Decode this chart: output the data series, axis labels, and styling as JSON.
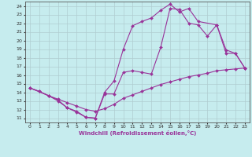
{
  "xlabel": "Windchill (Refroidissement éolien,°C)",
  "bg_color": "#c6ecee",
  "grid_color": "#b0cdd0",
  "line_color": "#993399",
  "xlim": [
    -0.5,
    23.5
  ],
  "ylim": [
    10.5,
    24.5
  ],
  "xticks": [
    0,
    1,
    2,
    3,
    4,
    5,
    6,
    7,
    8,
    9,
    10,
    11,
    12,
    13,
    14,
    15,
    16,
    17,
    18,
    19,
    20,
    21,
    22,
    23
  ],
  "yticks": [
    11,
    12,
    13,
    14,
    15,
    16,
    17,
    18,
    19,
    20,
    21,
    22,
    23,
    24
  ],
  "line1_x": [
    0,
    1,
    2,
    3,
    4,
    5,
    6,
    7,
    8,
    9,
    10,
    11,
    12,
    13,
    14,
    15,
    16,
    17,
    18,
    19,
    20,
    21,
    22,
    23
  ],
  "line1_y": [
    14.5,
    14.1,
    13.6,
    13.1,
    12.2,
    11.7,
    11.1,
    11.0,
    13.8,
    13.8,
    16.3,
    16.5,
    16.3,
    16.1,
    19.2,
    23.7,
    23.6,
    22.0,
    21.8,
    20.5,
    21.8,
    18.5,
    18.5,
    16.8
  ],
  "line2_x": [
    0,
    2,
    3,
    4,
    5,
    6,
    7,
    8,
    9,
    10,
    11,
    12,
    13,
    14,
    15,
    16,
    17,
    18,
    20,
    21,
    22,
    23
  ],
  "line2_y": [
    14.5,
    13.6,
    13.0,
    12.2,
    11.8,
    11.1,
    11.0,
    14.0,
    15.3,
    19.0,
    21.7,
    22.2,
    22.6,
    23.5,
    24.2,
    23.3,
    23.7,
    22.2,
    21.8,
    18.9,
    18.5,
    16.8
  ],
  "line3_x": [
    0,
    1,
    2,
    3,
    4,
    5,
    6,
    7,
    8,
    9,
    10,
    11,
    12,
    13,
    14,
    15,
    16,
    17,
    18,
    19,
    20,
    21,
    22,
    23
  ],
  "line3_y": [
    14.5,
    14.1,
    13.6,
    13.2,
    12.8,
    12.4,
    12.0,
    11.8,
    12.1,
    12.6,
    13.3,
    13.7,
    14.1,
    14.5,
    14.9,
    15.2,
    15.5,
    15.8,
    16.0,
    16.2,
    16.5,
    16.6,
    16.7,
    16.8
  ]
}
